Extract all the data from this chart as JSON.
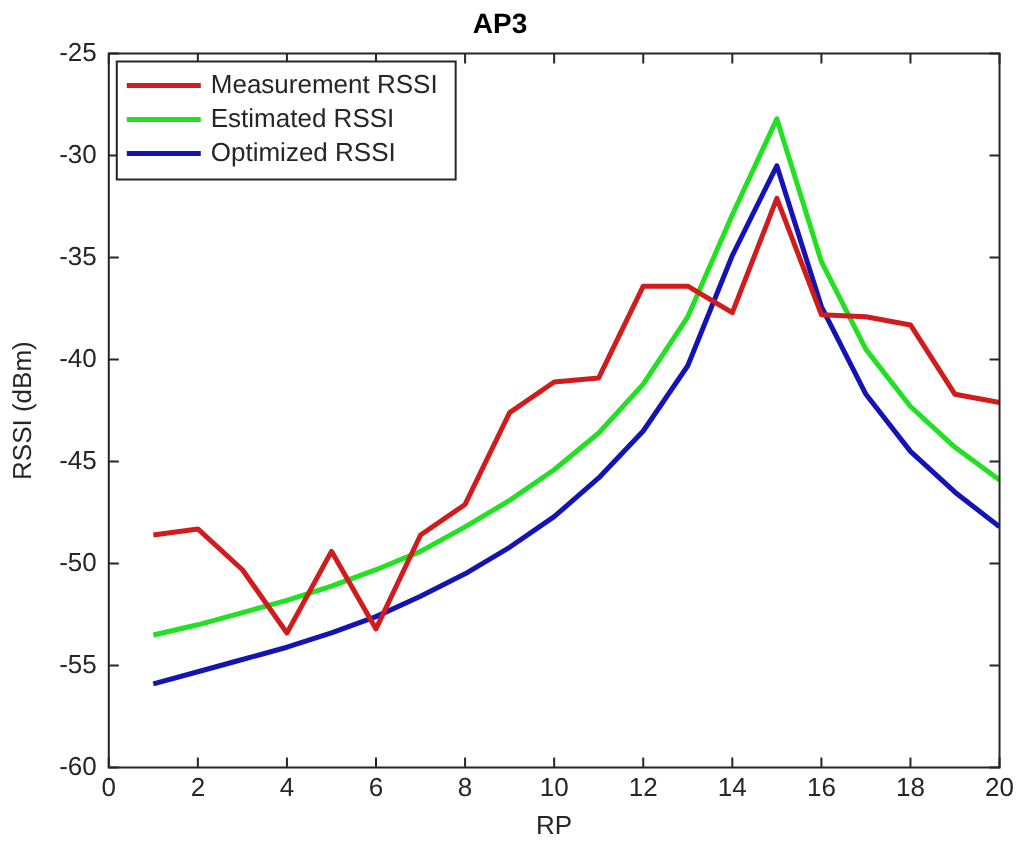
{
  "chart_data": {
    "type": "line",
    "title": "AP3",
    "xlabel": "RP",
    "ylabel": "RSSI (dBm)",
    "x": [
      1,
      2,
      3,
      4,
      5,
      6,
      7,
      8,
      9,
      10,
      11,
      12,
      13,
      14,
      15,
      16,
      17,
      18,
      19,
      20
    ],
    "series": [
      {
        "name": "Measurement RSSI",
        "color": "#d01c1c",
        "values": [
          -48.6,
          -48.3,
          -50.3,
          -53.4,
          -49.4,
          -53.2,
          -48.6,
          -47.1,
          -42.6,
          -41.1,
          -40.9,
          -36.4,
          -36.4,
          -37.7,
          -32.1,
          -37.8,
          -37.9,
          -38.3,
          -41.7,
          -42.1
        ]
      },
      {
        "name": "Estimated RSSI",
        "color": "#22e022",
        "values": [
          -53.5,
          -53.0,
          -52.4,
          -51.8,
          -51.1,
          -50.3,
          -49.4,
          -48.2,
          -46.9,
          -45.4,
          -43.6,
          -41.2,
          -37.9,
          -32.9,
          -28.2,
          -35.2,
          -39.5,
          -42.3,
          -44.3,
          -45.9
        ]
      },
      {
        "name": "Optimized RSSI",
        "color": "#1414b4",
        "values": [
          -55.9,
          -55.3,
          -54.7,
          -54.1,
          -53.4,
          -52.6,
          -51.6,
          -50.5,
          -49.2,
          -47.7,
          -45.8,
          -43.5,
          -40.3,
          -34.9,
          -30.5,
          -37.4,
          -41.7,
          -44.5,
          -46.5,
          -48.2
        ]
      }
    ],
    "xlim": [
      0,
      20
    ],
    "xticks": [
      0,
      2,
      4,
      6,
      8,
      10,
      12,
      14,
      16,
      18,
      20
    ],
    "ylim": [
      -60,
      -25
    ],
    "yticks": [
      -60,
      -55,
      -50,
      -45,
      -40,
      -35,
      -30,
      -25
    ],
    "legend": "top left",
    "marker": "none",
    "line_style": "solid",
    "grid": false
  }
}
